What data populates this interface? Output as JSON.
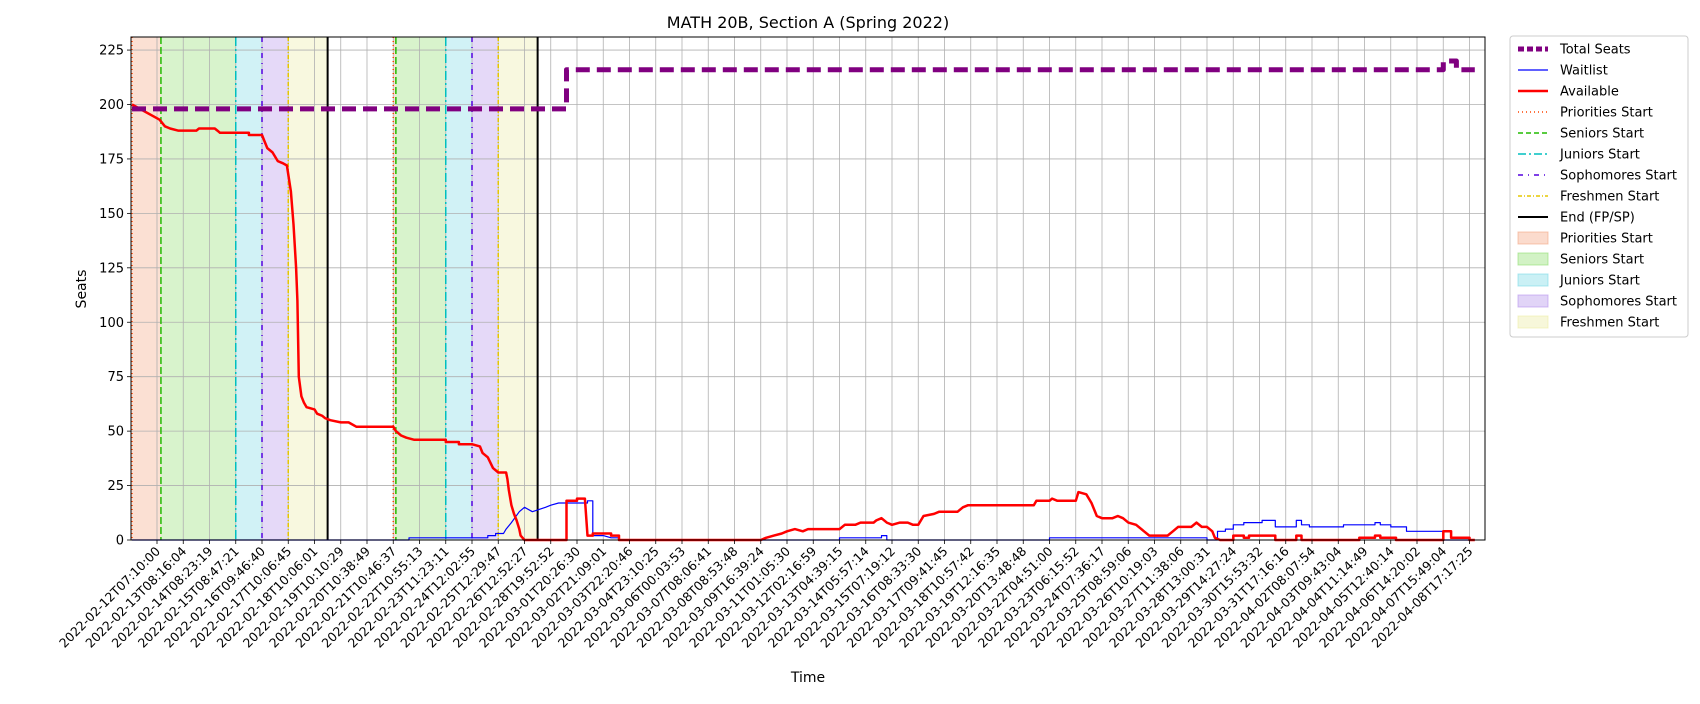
{
  "chart_data": {
    "type": "line",
    "title": "MATH 20B, Section A (Spring 2022)",
    "xlabel": "Time",
    "ylabel": "Seats",
    "ylim": [
      0,
      231
    ],
    "yticks": [
      0,
      25,
      50,
      75,
      100,
      125,
      150,
      175,
      200,
      225
    ],
    "grid": true,
    "legend_position": "outside right",
    "x_tick_labels": [
      "2022-02-12T07:10:00",
      "2022-02-13T08:16:04",
      "2022-02-14T08:23:19",
      "2022-02-15T08:47:21",
      "2022-02-16T09:46:40",
      "2022-02-17T10:06:45",
      "2022-02-18T10:06:01",
      "2022-02-19T10:10:29",
      "2022-02-20T10:38:49",
      "2022-02-21T10:46:37",
      "2022-02-22T10:55:13",
      "2022-02-23T11:23:11",
      "2022-02-24T12:02:55",
      "2022-02-25T12:29:47",
      "2022-02-26T12:52:27",
      "2022-02-28T19:52:52",
      "2022-03-01T20:26:30",
      "2022-03-02T21:09:01",
      "2022-03-03T22:20:46",
      "2022-03-04T23:10:25",
      "2022-03-06T00:03:53",
      "2022-03-07T08:06:41",
      "2022-03-08T08:53:48",
      "2022-03-09T16:39:24",
      "2022-03-11T01:05:30",
      "2022-03-12T02:16:59",
      "2022-03-13T04:39:15",
      "2022-03-14T05:57:14",
      "2022-03-15T07:19:12",
      "2022-03-16T08:33:30",
      "2022-03-17T09:41:45",
      "2022-03-18T10:57:42",
      "2022-03-19T12:16:35",
      "2022-03-20T13:48:48",
      "2022-03-22T04:51:00",
      "2022-03-23T06:15:52",
      "2022-03-24T07:36:17",
      "2022-03-25T08:59:06",
      "2022-03-26T10:19:03",
      "2022-03-27T11:38:06",
      "2022-03-28T13:00:31",
      "2022-03-29T14:27:24",
      "2022-03-30T15:53:32",
      "2022-03-31T17:16:16",
      "2022-04-02T08:07:54",
      "2022-04-03T09:43:04",
      "2022-04-04T11:14:49",
      "2022-04-05T12:40:14",
      "2022-04-06T14:20:02",
      "2022-04-07T15:49:04",
      "2022-04-08T17:17:25"
    ],
    "series": [
      {
        "name": "Total Seats",
        "color": "#800080",
        "style": "dashed-thick",
        "points": [
          [
            0,
            198
          ],
          [
            15.6,
            198
          ],
          [
            15.6,
            216
          ],
          [
            49.0,
            216
          ],
          [
            49.0,
            220
          ],
          [
            49.5,
            220
          ],
          [
            49.5,
            216
          ],
          [
            50.2,
            216
          ]
        ]
      },
      {
        "name": "Waitlist",
        "color": "#0000ff",
        "style": "solid-thin",
        "points": [
          [
            0,
            0
          ],
          [
            9.6,
            0
          ],
          [
            9.6,
            1
          ],
          [
            12.6,
            1
          ],
          [
            12.6,
            2
          ],
          [
            12.9,
            2
          ],
          [
            12.9,
            3
          ],
          [
            13.2,
            3
          ],
          [
            13.3,
            5
          ],
          [
            13.5,
            8
          ],
          [
            13.8,
            13
          ],
          [
            14.0,
            15
          ],
          [
            14.3,
            13
          ],
          [
            14.8,
            15
          ],
          [
            15.0,
            16
          ],
          [
            15.3,
            17
          ],
          [
            16.4,
            17
          ],
          [
            16.4,
            18
          ],
          [
            16.6,
            18
          ],
          [
            16.6,
            2
          ],
          [
            17.0,
            2
          ],
          [
            17.3,
            1
          ],
          [
            17.6,
            1
          ],
          [
            17.6,
            0
          ],
          [
            26.0,
            0
          ],
          [
            26.0,
            1
          ],
          [
            27.6,
            1
          ],
          [
            27.6,
            2
          ],
          [
            27.8,
            2
          ],
          [
            27.8,
            0
          ],
          [
            34.0,
            0
          ],
          [
            34.0,
            1
          ],
          [
            40.0,
            1
          ],
          [
            40.0,
            0
          ],
          [
            40.4,
            0
          ],
          [
            40.4,
            4
          ],
          [
            40.7,
            4
          ],
          [
            40.7,
            5
          ],
          [
            41.0,
            5
          ],
          [
            41.0,
            7
          ],
          [
            41.4,
            7
          ],
          [
            41.4,
            8
          ],
          [
            42.1,
            8
          ],
          [
            42.1,
            9
          ],
          [
            42.6,
            9
          ],
          [
            42.6,
            6
          ],
          [
            43.4,
            6
          ],
          [
            43.4,
            9
          ],
          [
            43.6,
            9
          ],
          [
            43.6,
            7
          ],
          [
            43.9,
            7
          ],
          [
            43.9,
            6
          ],
          [
            45.2,
            6
          ],
          [
            45.2,
            7
          ],
          [
            46.4,
            7
          ],
          [
            46.4,
            8
          ],
          [
            46.6,
            8
          ],
          [
            46.6,
            7
          ],
          [
            47.0,
            7
          ],
          [
            47.0,
            6
          ],
          [
            47.6,
            6
          ],
          [
            47.6,
            4
          ],
          [
            49.0,
            4
          ],
          [
            49.0,
            0
          ],
          [
            50.2,
            0
          ]
        ]
      },
      {
        "name": "Available",
        "color": "#ff0000",
        "style": "solid-thick",
        "points": [
          [
            0,
            200
          ],
          [
            0.1,
            193
          ],
          [
            0.3,
            190
          ],
          [
            0.5,
            189
          ],
          [
            0.8,
            188
          ],
          [
            1.5,
            188
          ],
          [
            1.6,
            189
          ],
          [
            2.2,
            189
          ],
          [
            2.3,
            188
          ],
          [
            2.4,
            187
          ],
          [
            3.5,
            187
          ],
          [
            3.5,
            186
          ],
          [
            4.0,
            186
          ],
          [
            4.1,
            183
          ],
          [
            4.2,
            180
          ],
          [
            4.4,
            178
          ],
          [
            4.6,
            174
          ],
          [
            4.8,
            173
          ],
          [
            4.95,
            172
          ],
          [
            5.1,
            160
          ],
          [
            5.2,
            145
          ],
          [
            5.3,
            125
          ],
          [
            5.35,
            110
          ],
          [
            5.4,
            75
          ],
          [
            5.5,
            66
          ],
          [
            5.6,
            63
          ],
          [
            5.7,
            61
          ],
          [
            6.0,
            60
          ],
          [
            6.1,
            58
          ],
          [
            6.3,
            57
          ],
          [
            6.4,
            56
          ],
          [
            6.6,
            55
          ],
          [
            7.0,
            54
          ],
          [
            7.3,
            54
          ],
          [
            7.6,
            52
          ],
          [
            9.0,
            52
          ],
          [
            9.1,
            50
          ],
          [
            9.3,
            48
          ],
          [
            9.5,
            47
          ],
          [
            9.8,
            46
          ],
          [
            11.0,
            46
          ],
          [
            11.0,
            45
          ],
          [
            11.5,
            45
          ],
          [
            11.5,
            44
          ],
          [
            12.0,
            44
          ],
          [
            12.3,
            43
          ],
          [
            12.4,
            40
          ],
          [
            12.6,
            38
          ],
          [
            12.8,
            33
          ],
          [
            13.0,
            31
          ],
          [
            13.3,
            31
          ],
          [
            13.35,
            28
          ],
          [
            13.4,
            23
          ],
          [
            13.5,
            16
          ],
          [
            13.6,
            12
          ],
          [
            13.7,
            9
          ],
          [
            13.8,
            5
          ],
          [
            13.85,
            2
          ],
          [
            14.0,
            0
          ],
          [
            15.6,
            0
          ],
          [
            15.6,
            18
          ],
          [
            16.0,
            18
          ],
          [
            16.0,
            19
          ],
          [
            16.3,
            19
          ],
          [
            16.4,
            2
          ],
          [
            16.6,
            2
          ],
          [
            16.6,
            3
          ],
          [
            17.3,
            3
          ],
          [
            17.3,
            2
          ],
          [
            17.6,
            2
          ],
          [
            17.6,
            0
          ],
          [
            23.0,
            0
          ],
          [
            23.2,
            1
          ],
          [
            23.5,
            2
          ],
          [
            23.8,
            3
          ],
          [
            24.0,
            4
          ],
          [
            24.3,
            5
          ],
          [
            24.6,
            4
          ],
          [
            24.8,
            5
          ],
          [
            26.0,
            5
          ],
          [
            26.2,
            7
          ],
          [
            26.6,
            7
          ],
          [
            26.8,
            8
          ],
          [
            27.3,
            8
          ],
          [
            27.4,
            9
          ],
          [
            27.6,
            10
          ],
          [
            27.8,
            8
          ],
          [
            28.0,
            7
          ],
          [
            28.3,
            8
          ],
          [
            28.6,
            8
          ],
          [
            28.8,
            7
          ],
          [
            29.0,
            7
          ],
          [
            29.2,
            11
          ],
          [
            29.6,
            12
          ],
          [
            29.8,
            13
          ],
          [
            30.5,
            13
          ],
          [
            30.7,
            15
          ],
          [
            30.9,
            16
          ],
          [
            33.4,
            16
          ],
          [
            33.5,
            18
          ],
          [
            34.0,
            18
          ],
          [
            34.1,
            19
          ],
          [
            34.3,
            18
          ],
          [
            35.0,
            18
          ],
          [
            35.1,
            22
          ],
          [
            35.4,
            21
          ],
          [
            35.6,
            17
          ],
          [
            35.8,
            11
          ],
          [
            36.0,
            10
          ],
          [
            36.4,
            10
          ],
          [
            36.6,
            11
          ],
          [
            36.8,
            10
          ],
          [
            37.0,
            8
          ],
          [
            37.3,
            7
          ],
          [
            37.6,
            4
          ],
          [
            37.8,
            2
          ],
          [
            38.5,
            2
          ],
          [
            38.7,
            4
          ],
          [
            38.9,
            6
          ],
          [
            39.4,
            6
          ],
          [
            39.6,
            8
          ],
          [
            39.8,
            6
          ],
          [
            40.0,
            6
          ],
          [
            40.2,
            4
          ],
          [
            40.3,
            1
          ],
          [
            40.5,
            0
          ],
          [
            41.0,
            0
          ],
          [
            41.0,
            2
          ],
          [
            41.4,
            2
          ],
          [
            41.4,
            1
          ],
          [
            41.6,
            1
          ],
          [
            41.6,
            2
          ],
          [
            42.6,
            2
          ],
          [
            42.6,
            0
          ],
          [
            43.4,
            0
          ],
          [
            43.4,
            2
          ],
          [
            43.6,
            2
          ],
          [
            43.6,
            0
          ],
          [
            45.8,
            0
          ],
          [
            45.8,
            1
          ],
          [
            46.4,
            1
          ],
          [
            46.4,
            2
          ],
          [
            46.6,
            2
          ],
          [
            46.6,
            1
          ],
          [
            47.2,
            1
          ],
          [
            47.2,
            0
          ],
          [
            49.0,
            0
          ],
          [
            49.0,
            4
          ],
          [
            49.3,
            4
          ],
          [
            49.3,
            1
          ],
          [
            50.0,
            1
          ],
          [
            50.0,
            0
          ],
          [
            50.2,
            0
          ]
        ]
      }
    ],
    "phases": [
      {
        "name": "Priorities Start",
        "start": 0,
        "end": 0.15,
        "color": "#f4a582"
      },
      {
        "name": "Seniors Start",
        "start": 0.15,
        "end": 3.0,
        "color": "#8ede6e"
      },
      {
        "name": "Juniors Start",
        "start": 3.0,
        "end": 4.0,
        "color": "#7ad9e6"
      },
      {
        "name": "Sophomores Start",
        "start": 4.0,
        "end": 5.0,
        "color": "#b593ec"
      },
      {
        "name": "Freshmen Start",
        "start": 5.0,
        "end": 6.5,
        "color": "#ececa3"
      },
      {
        "name": "Priorities Start",
        "start": 9.0,
        "end": 9.1,
        "color": "#f4a582"
      },
      {
        "name": "Seniors Start",
        "start": 9.1,
        "end": 11.0,
        "color": "#8ede6e"
      },
      {
        "name": "Juniors Start",
        "start": 11.0,
        "end": 12.0,
        "color": "#7ad9e6"
      },
      {
        "name": "Sophomores Start",
        "start": 12.0,
        "end": 13.0,
        "color": "#b593ec"
      },
      {
        "name": "Freshmen Start",
        "start": 13.0,
        "end": 14.5,
        "color": "#ececa3"
      }
    ],
    "vlines": [
      {
        "name": "Priorities Start",
        "x": 0,
        "color": "#ff4500",
        "dash": "1,3"
      },
      {
        "name": "Seniors Start",
        "x": 0.15,
        "color": "#22bb00",
        "dash": "7,3"
      },
      {
        "name": "Juniors Start",
        "x": 3.0,
        "color": "#00bfbf",
        "dash": "9,3,2,3"
      },
      {
        "name": "Sophomores Start",
        "x": 4.0,
        "color": "#5500dd",
        "dash": "5,5,1,5"
      },
      {
        "name": "Freshmen Start",
        "x": 5.0,
        "color": "#e6c700",
        "dash": "4,2,1,2"
      },
      {
        "name": "End (FP/SP)",
        "x": 6.5,
        "color": "#000000",
        "dash": ""
      },
      {
        "name": "Priorities Start",
        "x": 9.0,
        "color": "#ff4500",
        "dash": "1,3"
      },
      {
        "name": "Seniors Start",
        "x": 9.1,
        "color": "#22bb00",
        "dash": "7,3"
      },
      {
        "name": "Juniors Start",
        "x": 11.0,
        "color": "#00bfbf",
        "dash": "9,3,2,3"
      },
      {
        "name": "Sophomores Start",
        "x": 12.0,
        "color": "#5500dd",
        "dash": "5,5,1,5"
      },
      {
        "name": "Freshmen Start",
        "x": 13.0,
        "color": "#e6c700",
        "dash": "4,2,1,2"
      },
      {
        "name": "End (FP/SP)",
        "x": 14.5,
        "color": "#000000",
        "dash": ""
      }
    ],
    "legend": [
      {
        "label": "Total Seats",
        "kind": "line",
        "color": "#800080",
        "dash": "6,3",
        "width": 5
      },
      {
        "label": "Waitlist",
        "kind": "line",
        "color": "#0000ff",
        "dash": "",
        "width": 1.2
      },
      {
        "label": "Available",
        "kind": "line",
        "color": "#ff0000",
        "dash": "",
        "width": 2.5
      },
      {
        "label": "Priorities Start",
        "kind": "line",
        "color": "#ff4500",
        "dash": "1,3",
        "width": 1.5
      },
      {
        "label": "Seniors Start",
        "kind": "line",
        "color": "#22bb00",
        "dash": "5,3",
        "width": 1.5
      },
      {
        "label": "Juniors Start",
        "kind": "line",
        "color": "#00bfbf",
        "dash": "8,3,2,3",
        "width": 1.5
      },
      {
        "label": "Sophomores Start",
        "kind": "line",
        "color": "#5500dd",
        "dash": "5,5,1,5",
        "width": 1.5
      },
      {
        "label": "Freshmen Start",
        "kind": "line",
        "color": "#e6c700",
        "dash": "4,2,1,2",
        "width": 1.5
      },
      {
        "label": "End (FP/SP)",
        "kind": "line",
        "color": "#000000",
        "dash": "",
        "width": 2
      },
      {
        "label": "Priorities Start",
        "kind": "patch",
        "color": "#f4a582"
      },
      {
        "label": "Seniors Start",
        "kind": "patch",
        "color": "#8ede6e"
      },
      {
        "label": "Juniors Start",
        "kind": "patch",
        "color": "#7ad9e6"
      },
      {
        "label": "Sophomores Start",
        "kind": "patch",
        "color": "#b593ec"
      },
      {
        "label": "Freshmen Start",
        "kind": "patch",
        "color": "#ececa3"
      }
    ]
  }
}
